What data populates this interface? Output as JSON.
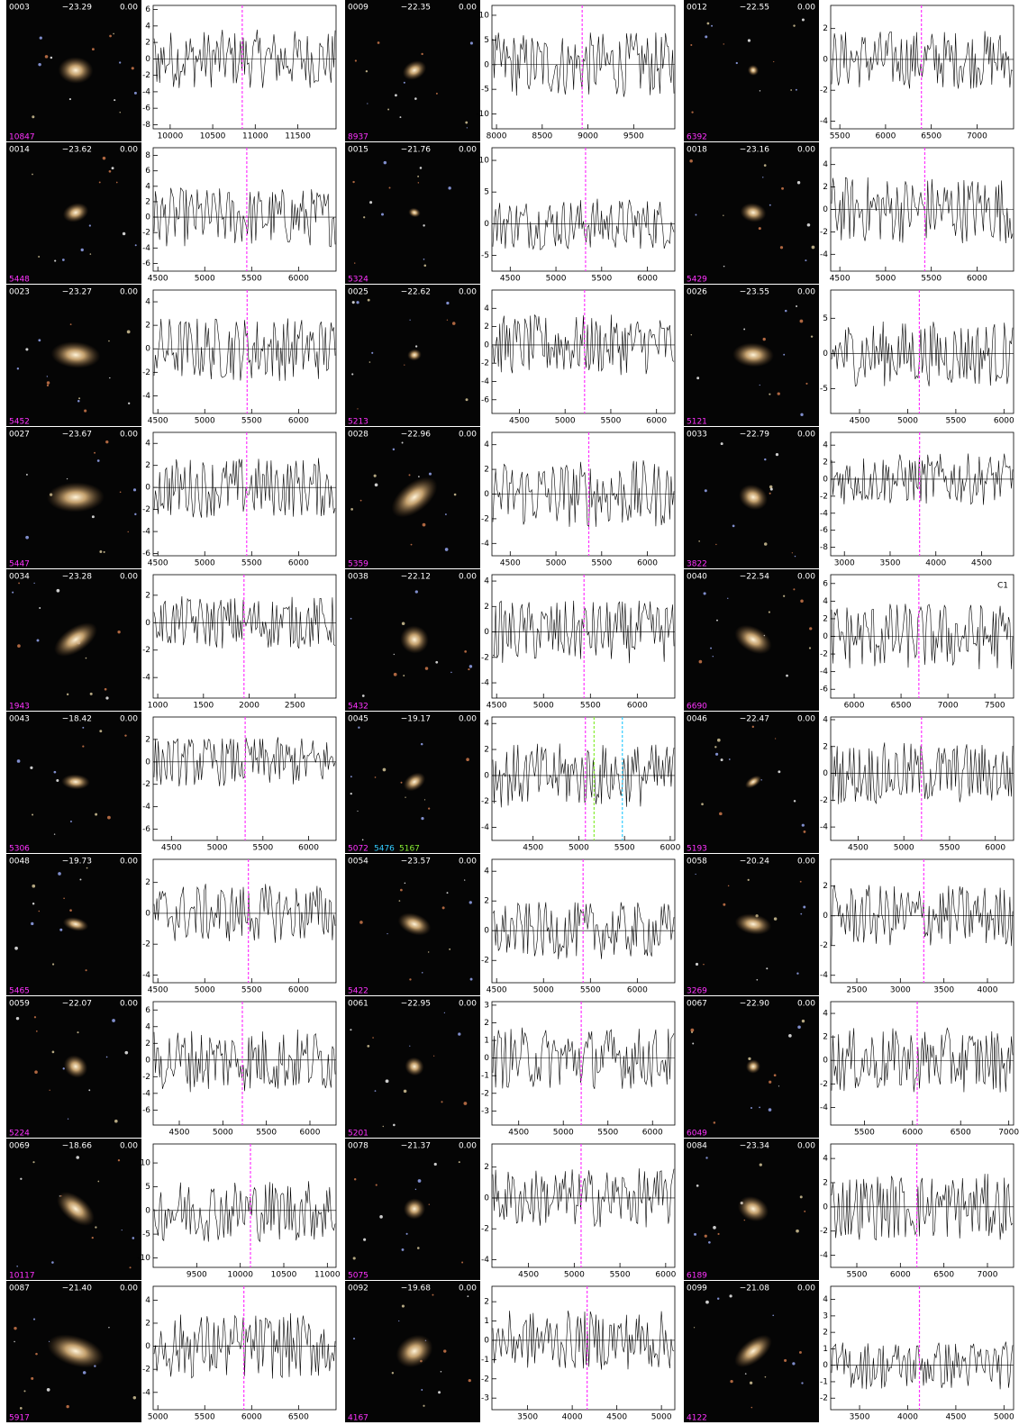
{
  "marker_color": "#ff33ff",
  "panels": [
    {
      "id": "0003",
      "mag": "−23.29",
      "z": "0.00",
      "vel": 10847,
      "xlim": [
        9800,
        11950
      ],
      "xticks": [
        10000,
        10500,
        11000,
        11500
      ],
      "ylim": [
        -8.5,
        6.5
      ],
      "yticks": [
        -8,
        -6,
        -4,
        -2,
        0,
        2,
        4,
        6
      ]
    },
    {
      "id": "0009",
      "mag": "−22.35",
      "z": "0.00",
      "vel": 8937,
      "xlim": [
        7950,
        9950
      ],
      "xticks": [
        8000,
        8500,
        9000,
        9500
      ],
      "ylim": [
        -13,
        12
      ],
      "yticks": [
        -10,
        -5,
        0,
        5,
        10
      ]
    },
    {
      "id": "0012",
      "mag": "−22.55",
      "z": "0.00",
      "vel": 6392,
      "xlim": [
        5400,
        7400
      ],
      "xticks": [
        5500,
        6000,
        6500,
        7000
      ],
      "ylim": [
        -4.5,
        3.5
      ],
      "yticks": [
        -4,
        -2,
        0,
        2
      ]
    },
    {
      "id": "0014",
      "mag": "−23.62",
      "z": "0.00",
      "vel": 5448,
      "xlim": [
        4450,
        6400
      ],
      "xticks": [
        4500,
        5000,
        5500,
        6000
      ],
      "ylim": [
        -7,
        9
      ],
      "yticks": [
        -6,
        -4,
        -2,
        0,
        2,
        4,
        6,
        8
      ]
    },
    {
      "id": "0015",
      "mag": "−21.76",
      "z": "0.00",
      "vel": 5324,
      "xlim": [
        4300,
        6300
      ],
      "xticks": [
        4500,
        5000,
        5500,
        6000
      ],
      "ylim": [
        -7.5,
        12
      ],
      "yticks": [
        -5,
        0,
        5,
        10
      ]
    },
    {
      "id": "0018",
      "mag": "−23.16",
      "z": "0.00",
      "vel": 5429,
      "xlim": [
        4400,
        6400
      ],
      "xticks": [
        4500,
        5000,
        5500,
        6000
      ],
      "ylim": [
        -5.5,
        5.5
      ],
      "yticks": [
        -4,
        -2,
        0,
        2,
        4
      ]
    },
    {
      "id": "0023",
      "mag": "−23.27",
      "z": "0.00",
      "vel": 5452,
      "xlim": [
        4450,
        6400
      ],
      "xticks": [
        4500,
        5000,
        5500,
        6000
      ],
      "ylim": [
        -5.5,
        5
      ],
      "yticks": [
        -4,
        -2,
        0,
        2,
        4
      ]
    },
    {
      "id": "0025",
      "mag": "−22.62",
      "z": "0.00",
      "vel": 5213,
      "xlim": [
        4200,
        6200
      ],
      "xticks": [
        4500,
        5000,
        5500,
        6000
      ],
      "ylim": [
        -7.5,
        6
      ],
      "yticks": [
        -6,
        -4,
        -2,
        0,
        2,
        4
      ]
    },
    {
      "id": "0026",
      "mag": "−23.55",
      "z": "0.00",
      "vel": 5121,
      "xlim": [
        4200,
        6100
      ],
      "xticks": [
        4500,
        5000,
        5500,
        6000
      ],
      "ylim": [
        -8.5,
        9
      ],
      "yticks": [
        -5,
        0,
        5
      ]
    },
    {
      "id": "0027",
      "mag": "−23.67",
      "z": "0.00",
      "vel": 5447,
      "xlim": [
        4450,
        6400
      ],
      "xticks": [
        4500,
        5000,
        5500,
        6000
      ],
      "ylim": [
        -6.2,
        5
      ],
      "yticks": [
        -6,
        -4,
        -2,
        0,
        2,
        4
      ]
    },
    {
      "id": "0028",
      "mag": "−22.96",
      "z": "0.00",
      "vel": 5359,
      "xlim": [
        4300,
        6300
      ],
      "xticks": [
        4500,
        5000,
        5500,
        6000
      ],
      "ylim": [
        -5,
        5
      ],
      "yticks": [
        -4,
        -2,
        0,
        2,
        4
      ]
    },
    {
      "id": "0033",
      "mag": "−22.79",
      "z": "0.00",
      "vel": 3822,
      "xlim": [
        2850,
        4850
      ],
      "xticks": [
        3000,
        3500,
        4000,
        4500
      ],
      "ylim": [
        -9,
        5.5
      ],
      "yticks": [
        -8,
        -6,
        -4,
        -2,
        0,
        2,
        4
      ]
    },
    {
      "id": "0034",
      "mag": "−23.28",
      "z": "0.00",
      "vel": 1943,
      "xlim": [
        950,
        2950
      ],
      "xticks": [
        1000,
        1500,
        2000,
        2500
      ],
      "ylim": [
        -5.5,
        3.5
      ],
      "yticks": [
        -4,
        -2,
        0,
        2
      ]
    },
    {
      "id": "0038",
      "mag": "−22.12",
      "z": "0.00",
      "vel": 5432,
      "xlim": [
        4450,
        6400
      ],
      "xticks": [
        4500,
        5000,
        5500,
        6000
      ],
      "ylim": [
        -5.2,
        4.5
      ],
      "yticks": [
        -4,
        -2,
        0,
        2,
        4
      ]
    },
    {
      "id": "0040",
      "mag": "−22.54",
      "z": "0.00",
      "vel": 6690,
      "xlim": [
        5750,
        7700
      ],
      "xticks": [
        6000,
        6500,
        7000,
        7500
      ],
      "ylim": [
        -7,
        7
      ],
      "yticks": [
        -6,
        -4,
        -2,
        0,
        2,
        4,
        6
      ],
      "annotation": "C1"
    },
    {
      "id": "0043",
      "mag": "−18.42",
      "z": "0.00",
      "vel": 5306,
      "xlim": [
        4300,
        6300
      ],
      "xticks": [
        4500,
        5000,
        5500,
        6000
      ],
      "ylim": [
        -7,
        4
      ],
      "yticks": [
        -6,
        -4,
        -2,
        0,
        2
      ]
    },
    {
      "id": "0045",
      "mag": "−19.17",
      "z": "0.00",
      "vel": 5072,
      "xlim": [
        4050,
        6050
      ],
      "xticks": [
        4500,
        5000,
        5500,
        6000
      ],
      "ylim": [
        -5,
        4.5
      ],
      "yticks": [
        -4,
        -2,
        0,
        2,
        4
      ],
      "extra_lines": [
        {
          "value": 5476,
          "color": "#33ccff"
        },
        {
          "value": 5167,
          "color": "#88ee33"
        }
      ]
    },
    {
      "id": "0046",
      "mag": "−22.47",
      "z": "0.00",
      "vel": 5193,
      "xlim": [
        4200,
        6200
      ],
      "xticks": [
        4500,
        5000,
        5500,
        6000
      ],
      "ylim": [
        -5,
        4.2
      ],
      "yticks": [
        -4,
        -2,
        0,
        2,
        4
      ]
    },
    {
      "id": "0048",
      "mag": "−19.73",
      "z": "0.00",
      "vel": 5465,
      "xlim": [
        4450,
        6400
      ],
      "xticks": [
        4500,
        5000,
        5500,
        6000
      ],
      "ylim": [
        -4.5,
        3.5
      ],
      "yticks": [
        -4,
        -2,
        0,
        2
      ]
    },
    {
      "id": "0054",
      "mag": "−23.57",
      "z": "0.00",
      "vel": 5422,
      "xlim": [
        4450,
        6400
      ],
      "xticks": [
        4500,
        5000,
        5500,
        6000
      ],
      "ylim": [
        -3.5,
        4.8
      ],
      "yticks": [
        -2,
        0,
        2,
        4
      ]
    },
    {
      "id": "0058",
      "mag": "−20.24",
      "z": "0.00",
      "vel": 3269,
      "xlim": [
        2200,
        4300
      ],
      "xticks": [
        2500,
        3000,
        3500,
        4000
      ],
      "ylim": [
        -4.5,
        3.8
      ],
      "yticks": [
        -4,
        -2,
        0,
        2
      ]
    },
    {
      "id": "0059",
      "mag": "−22.07",
      "z": "0.00",
      "vel": 5224,
      "xlim": [
        4200,
        6300
      ],
      "xticks": [
        4500,
        5000,
        5500,
        6000
      ],
      "ylim": [
        -7.8,
        7
      ],
      "yticks": [
        -6,
        -4,
        -2,
        0,
        2,
        4,
        6
      ]
    },
    {
      "id": "0061",
      "mag": "−22.95",
      "z": "0.00",
      "vel": 5201,
      "xlim": [
        4200,
        6250
      ],
      "xticks": [
        4500,
        5000,
        5500,
        6000
      ],
      "ylim": [
        -3.8,
        3.2
      ],
      "yticks": [
        -3,
        -2,
        -1,
        0,
        1,
        2,
        3
      ]
    },
    {
      "id": "0067",
      "mag": "−22.90",
      "z": "0.00",
      "vel": 6049,
      "xlim": [
        5150,
        7050
      ],
      "xticks": [
        5500,
        6000,
        6500,
        7000
      ],
      "ylim": [
        -5.5,
        5
      ],
      "yticks": [
        -4,
        -2,
        0,
        2,
        4
      ]
    },
    {
      "id": "0069",
      "mag": "−18.66",
      "z": "0.00",
      "vel": 10117,
      "xlim": [
        9000,
        11100
      ],
      "xticks": [
        9500,
        10000,
        10500,
        11000
      ],
      "ylim": [
        -12,
        14
      ],
      "yticks": [
        -10,
        -5,
        0,
        5,
        10
      ]
    },
    {
      "id": "0078",
      "mag": "−21.37",
      "z": "0.00",
      "vel": 5075,
      "xlim": [
        4100,
        6100
      ],
      "xticks": [
        4500,
        5000,
        5500,
        6000
      ],
      "ylim": [
        -4.5,
        3.5
      ],
      "yticks": [
        -4,
        -2,
        0,
        2
      ]
    },
    {
      "id": "0084",
      "mag": "−23.34",
      "z": "0.00",
      "vel": 6189,
      "xlim": [
        5200,
        7300
      ],
      "xticks": [
        5500,
        6000,
        6500,
        7000
      ],
      "ylim": [
        -5,
        5.2
      ],
      "yticks": [
        -4,
        -2,
        0,
        2,
        4
      ]
    },
    {
      "id": "0087",
      "mag": "−21.40",
      "z": "0.00",
      "vel": 5917,
      "xlim": [
        4950,
        6900
      ],
      "xticks": [
        5000,
        5500,
        6000,
        6500
      ],
      "ylim": [
        -5.5,
        5.2
      ],
      "yticks": [
        -4,
        -2,
        0,
        2,
        4
      ]
    },
    {
      "id": "0092",
      "mag": "−19.68",
      "z": "0.00",
      "vel": 4167,
      "xlim": [
        3100,
        5150
      ],
      "xticks": [
        3500,
        4000,
        4500,
        5000
      ],
      "ylim": [
        -3.6,
        2.8
      ],
      "yticks": [
        -3,
        -2,
        -1,
        0,
        1,
        2
      ]
    },
    {
      "id": "0099",
      "mag": "−21.08",
      "z": "0.00",
      "vel": 4122,
      "xlim": [
        3200,
        5100
      ],
      "xticks": [
        3500,
        4000,
        4500,
        5000
      ],
      "ylim": [
        -2.7,
        4.8
      ],
      "yticks": [
        -2,
        -1,
        0,
        1,
        2,
        3,
        4
      ]
    }
  ]
}
